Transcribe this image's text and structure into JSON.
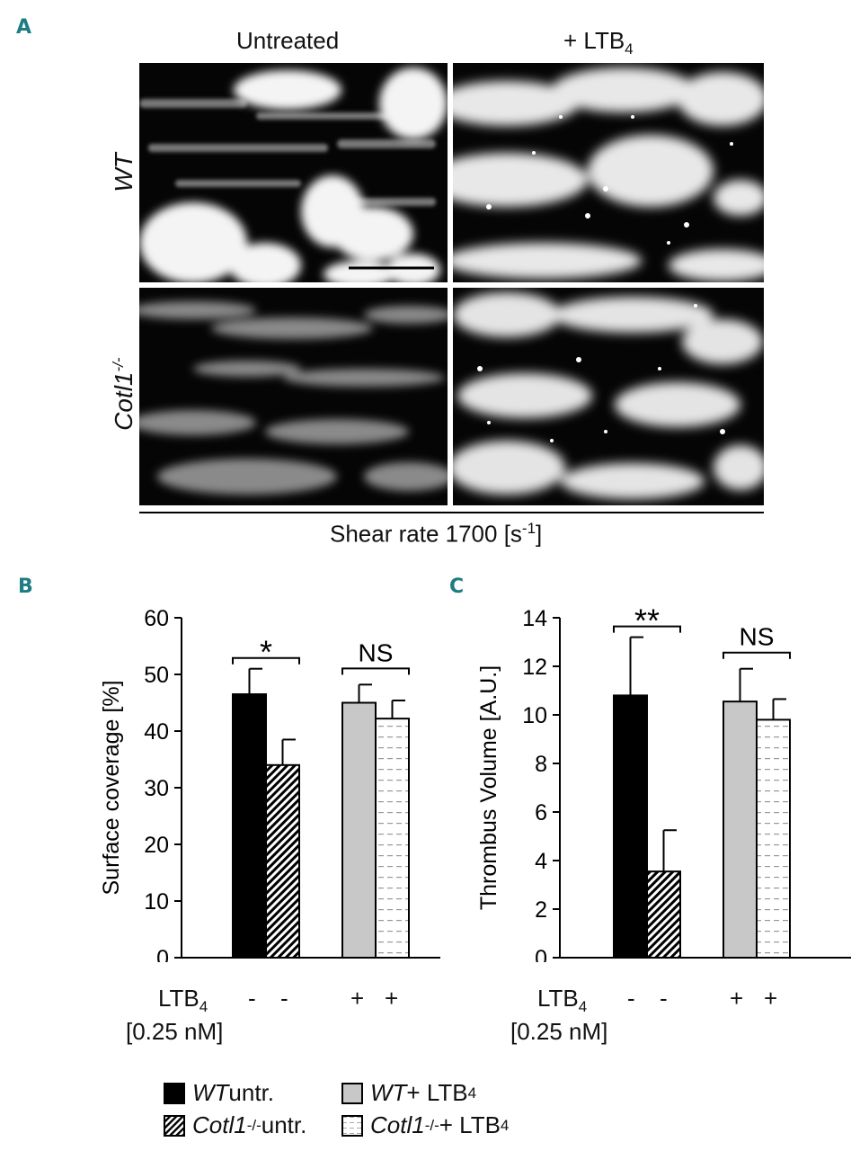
{
  "panel_letters": {
    "a": "A",
    "b": "B",
    "c": "C"
  },
  "panel_a": {
    "col_untreated": "Untreated",
    "col_ltb4_prefix": "+ LTB",
    "col_ltb4_sub": "4",
    "row_wt": "WT",
    "row_ko": "Cotl1",
    "row_ko_sup": "-/-",
    "shear_prefix": "Shear rate 1700 [s",
    "shear_sup": "-1",
    "shear_suffix": "]"
  },
  "treatment_row": {
    "ltb4": "LTB",
    "ltb4_sub": "4",
    "conc": "[0.25 nM]",
    "signs": [
      "-",
      "-",
      "+",
      "+"
    ]
  },
  "legend": {
    "wt_untr_it": "WT",
    "wt_untr_rest": " untr.",
    "ko_untr_it": "Cotl1",
    "ko_sup": "-/-",
    "ko_untr_rest": " untr.",
    "wt_ltb_it": "WT",
    "wt_ltb_rest": " + LTB",
    "sub": "4",
    "ko_ltb_it": "Cotl1",
    "ko_ltb_rest": " + LTB"
  },
  "colors": {
    "wt_untr": "#000000",
    "wt_ltb4": "#c8c8c8",
    "ko_untr": "hatched",
    "ko_ltb4": "dashed-white",
    "panel_letter": "#1e7d82"
  },
  "chart_data": [
    {
      "type": "bar",
      "panel": "B",
      "ylabel": "Surface coverage [%]",
      "ylim": [
        0,
        60
      ],
      "yticks": [
        0,
        10,
        20,
        30,
        40,
        50,
        60
      ],
      "categories": [
        "WT untr.",
        "Cotl1-/- untr.",
        "WT + LTB4",
        "Cotl1-/- + LTB4"
      ],
      "values": [
        46.5,
        34,
        45,
        42.2
      ],
      "errors": [
        4.5,
        4.5,
        3.2,
        3.2
      ],
      "significance": [
        {
          "label": "*",
          "pair": [
            0,
            1
          ]
        },
        {
          "label": "NS",
          "pair": [
            2,
            3
          ]
        }
      ]
    },
    {
      "type": "bar",
      "panel": "C",
      "ylabel": "Thrombus Volume [A.U.]",
      "ylim": [
        0,
        14
      ],
      "yticks": [
        0,
        2,
        4,
        6,
        8,
        10,
        12,
        14
      ],
      "categories": [
        "WT untr.",
        "Cotl1-/- untr.",
        "WT + LTB4",
        "Cotl1-/- + LTB4"
      ],
      "values": [
        10.8,
        3.55,
        10.55,
        9.8
      ],
      "errors": [
        2.4,
        1.7,
        1.35,
        0.85
      ],
      "significance": [
        {
          "label": "**",
          "pair": [
            0,
            1
          ]
        },
        {
          "label": "NS",
          "pair": [
            2,
            3
          ]
        }
      ]
    }
  ]
}
